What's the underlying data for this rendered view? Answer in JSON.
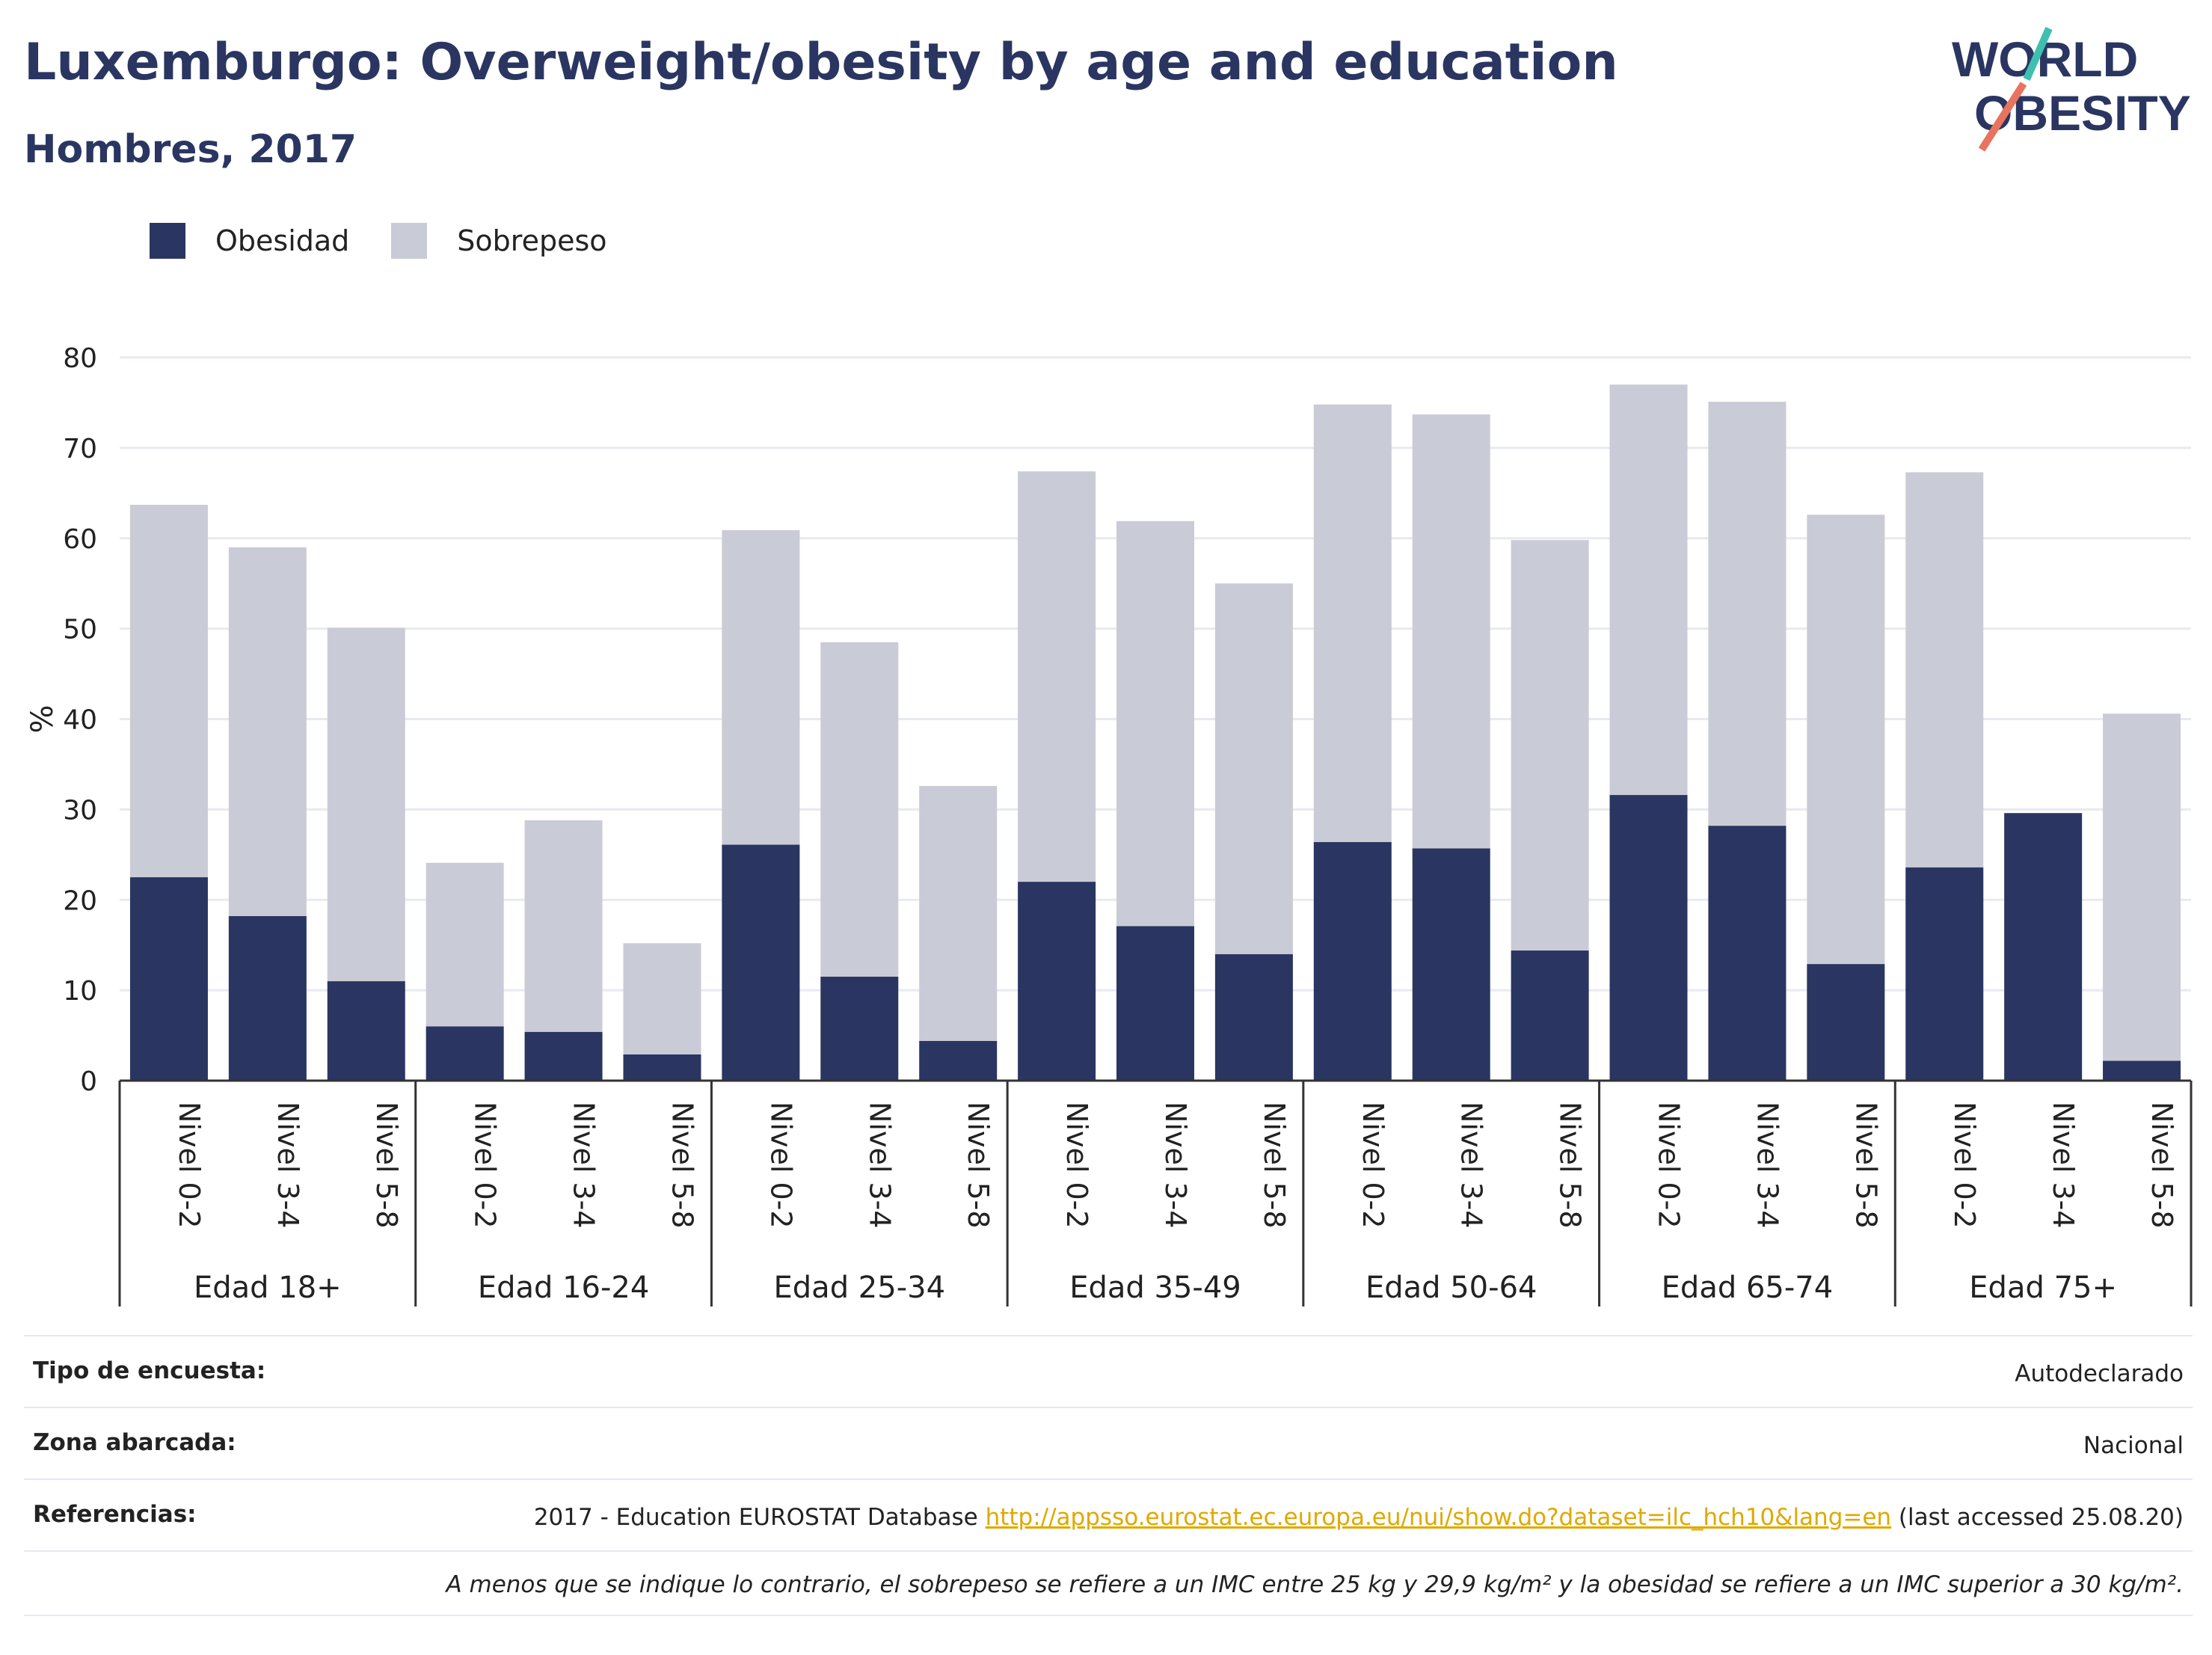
{
  "header": {
    "title": "Luxemburgo: Overweight/obesity by age and education",
    "subtitle": "Hombres, 2017"
  },
  "logo": {
    "line1": "WORLD",
    "line2": "OBESITY"
  },
  "colors": {
    "obesity": "#2a3661",
    "overweight": "#c9cbd6",
    "title": "#2a3661",
    "link": "#e0a800",
    "logo_accent_teal": "#3fbfb0",
    "logo_accent_coral": "#e8735f"
  },
  "chart_data": {
    "type": "bar",
    "stacked": true,
    "ylabel": "%",
    "ylim": [
      0,
      80
    ],
    "yticks": [
      0,
      10,
      20,
      30,
      40,
      50,
      60,
      70,
      80
    ],
    "grid": true,
    "legend_position": "top-left",
    "groups": [
      {
        "label": "Edad 18+",
        "categories": [
          "Nivel 0-2",
          "Nivel 3-4",
          "Nivel 5-8"
        ]
      },
      {
        "label": "Edad 16-24",
        "categories": [
          "Nivel 0-2",
          "Nivel 3-4",
          "Nivel 5-8"
        ]
      },
      {
        "label": "Edad 25-34",
        "categories": [
          "Nivel 0-2",
          "Nivel 3-4",
          "Nivel 5-8"
        ]
      },
      {
        "label": "Edad 35-49",
        "categories": [
          "Nivel 0-2",
          "Nivel 3-4",
          "Nivel 5-8"
        ]
      },
      {
        "label": "Edad 50-64",
        "categories": [
          "Nivel 0-2",
          "Nivel 3-4",
          "Nivel 5-8"
        ]
      },
      {
        "label": "Edad 65-74",
        "categories": [
          "Nivel 0-2",
          "Nivel 3-4",
          "Nivel 5-8"
        ]
      },
      {
        "label": "Edad 75+",
        "categories": [
          "Nivel 0-2",
          "Nivel 3-4",
          "Nivel 5-8"
        ]
      }
    ],
    "series": [
      {
        "name": "Obesidad",
        "values": [
          22.5,
          18.2,
          11.0,
          6.0,
          5.4,
          2.9,
          26.1,
          11.5,
          4.4,
          22.0,
          17.1,
          14.0,
          26.4,
          25.7,
          14.4,
          31.6,
          28.2,
          12.9,
          23.6,
          29.6,
          2.2
        ]
      },
      {
        "name": "Sobrepeso",
        "values": [
          41.2,
          40.8,
          39.1,
          18.1,
          23.4,
          12.3,
          34.8,
          37.0,
          28.2,
          45.4,
          44.8,
          41.0,
          48.4,
          48.0,
          45.4,
          45.4,
          46.9,
          49.7,
          43.7,
          0.0,
          38.4
        ]
      }
    ]
  },
  "footer": {
    "survey_label": "Tipo de encuesta:",
    "survey_value": "Autodeclarado",
    "area_label": "Zona abarcada:",
    "area_value": "Nacional",
    "refs_label": "Referencias:",
    "refs_prefix": "2017 - Education EUROSTAT Database ",
    "refs_link": "http://appsso.eurostat.ec.europa.eu/nui/show.do?dataset=ilc_hch10&lang=en",
    "refs_suffix": " (last accessed 25.08.20)",
    "note": "A menos que se indique lo contrario, el sobrepeso se refiere a un IMC entre 25 kg y 29,9 kg/m² y la obesidad se refiere a un IMC superior a 30 kg/m²."
  }
}
